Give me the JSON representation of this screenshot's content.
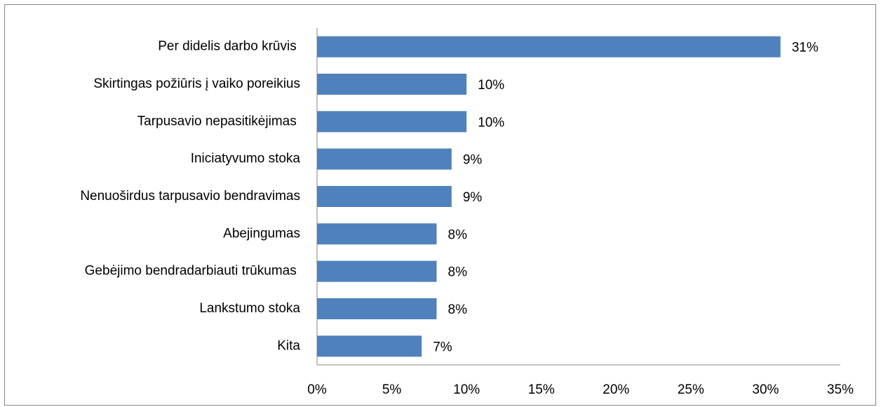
{
  "chart_data": {
    "type": "barh",
    "categories": [
      "Per didelis darbo krūvis ",
      "Skirtingas požiūris į vaiko poreikius",
      "Tarpusavio nepasitikėjimas ",
      "Iniciatyvumo stoka",
      "Nenuoširdus tarpusavio bendravimas",
      "Abejingumas",
      "Gebėjimo bendradarbiauti trūkumas ",
      "Lankstumo stoka",
      "Kita"
    ],
    "values": [
      31,
      10,
      10,
      9,
      9,
      8,
      8,
      8,
      7
    ],
    "value_labels": [
      "31%",
      "10%",
      "10%",
      "9%",
      "9%",
      "8%",
      "8%",
      "8%",
      "7%"
    ],
    "color": "#4f81bd",
    "xlim": [
      0,
      35
    ],
    "xticks": [
      {
        "value": 0,
        "label": "0%"
      },
      {
        "value": 5,
        "label": "5%"
      },
      {
        "value": 10,
        "label": "10%"
      },
      {
        "value": 15,
        "label": "15%"
      },
      {
        "value": 20,
        "label": "20%"
      },
      {
        "value": 25,
        "label": "25%"
      },
      {
        "value": 30,
        "label": "30%"
      },
      {
        "value": 35,
        "label": "35%"
      }
    ],
    "grid": false
  }
}
